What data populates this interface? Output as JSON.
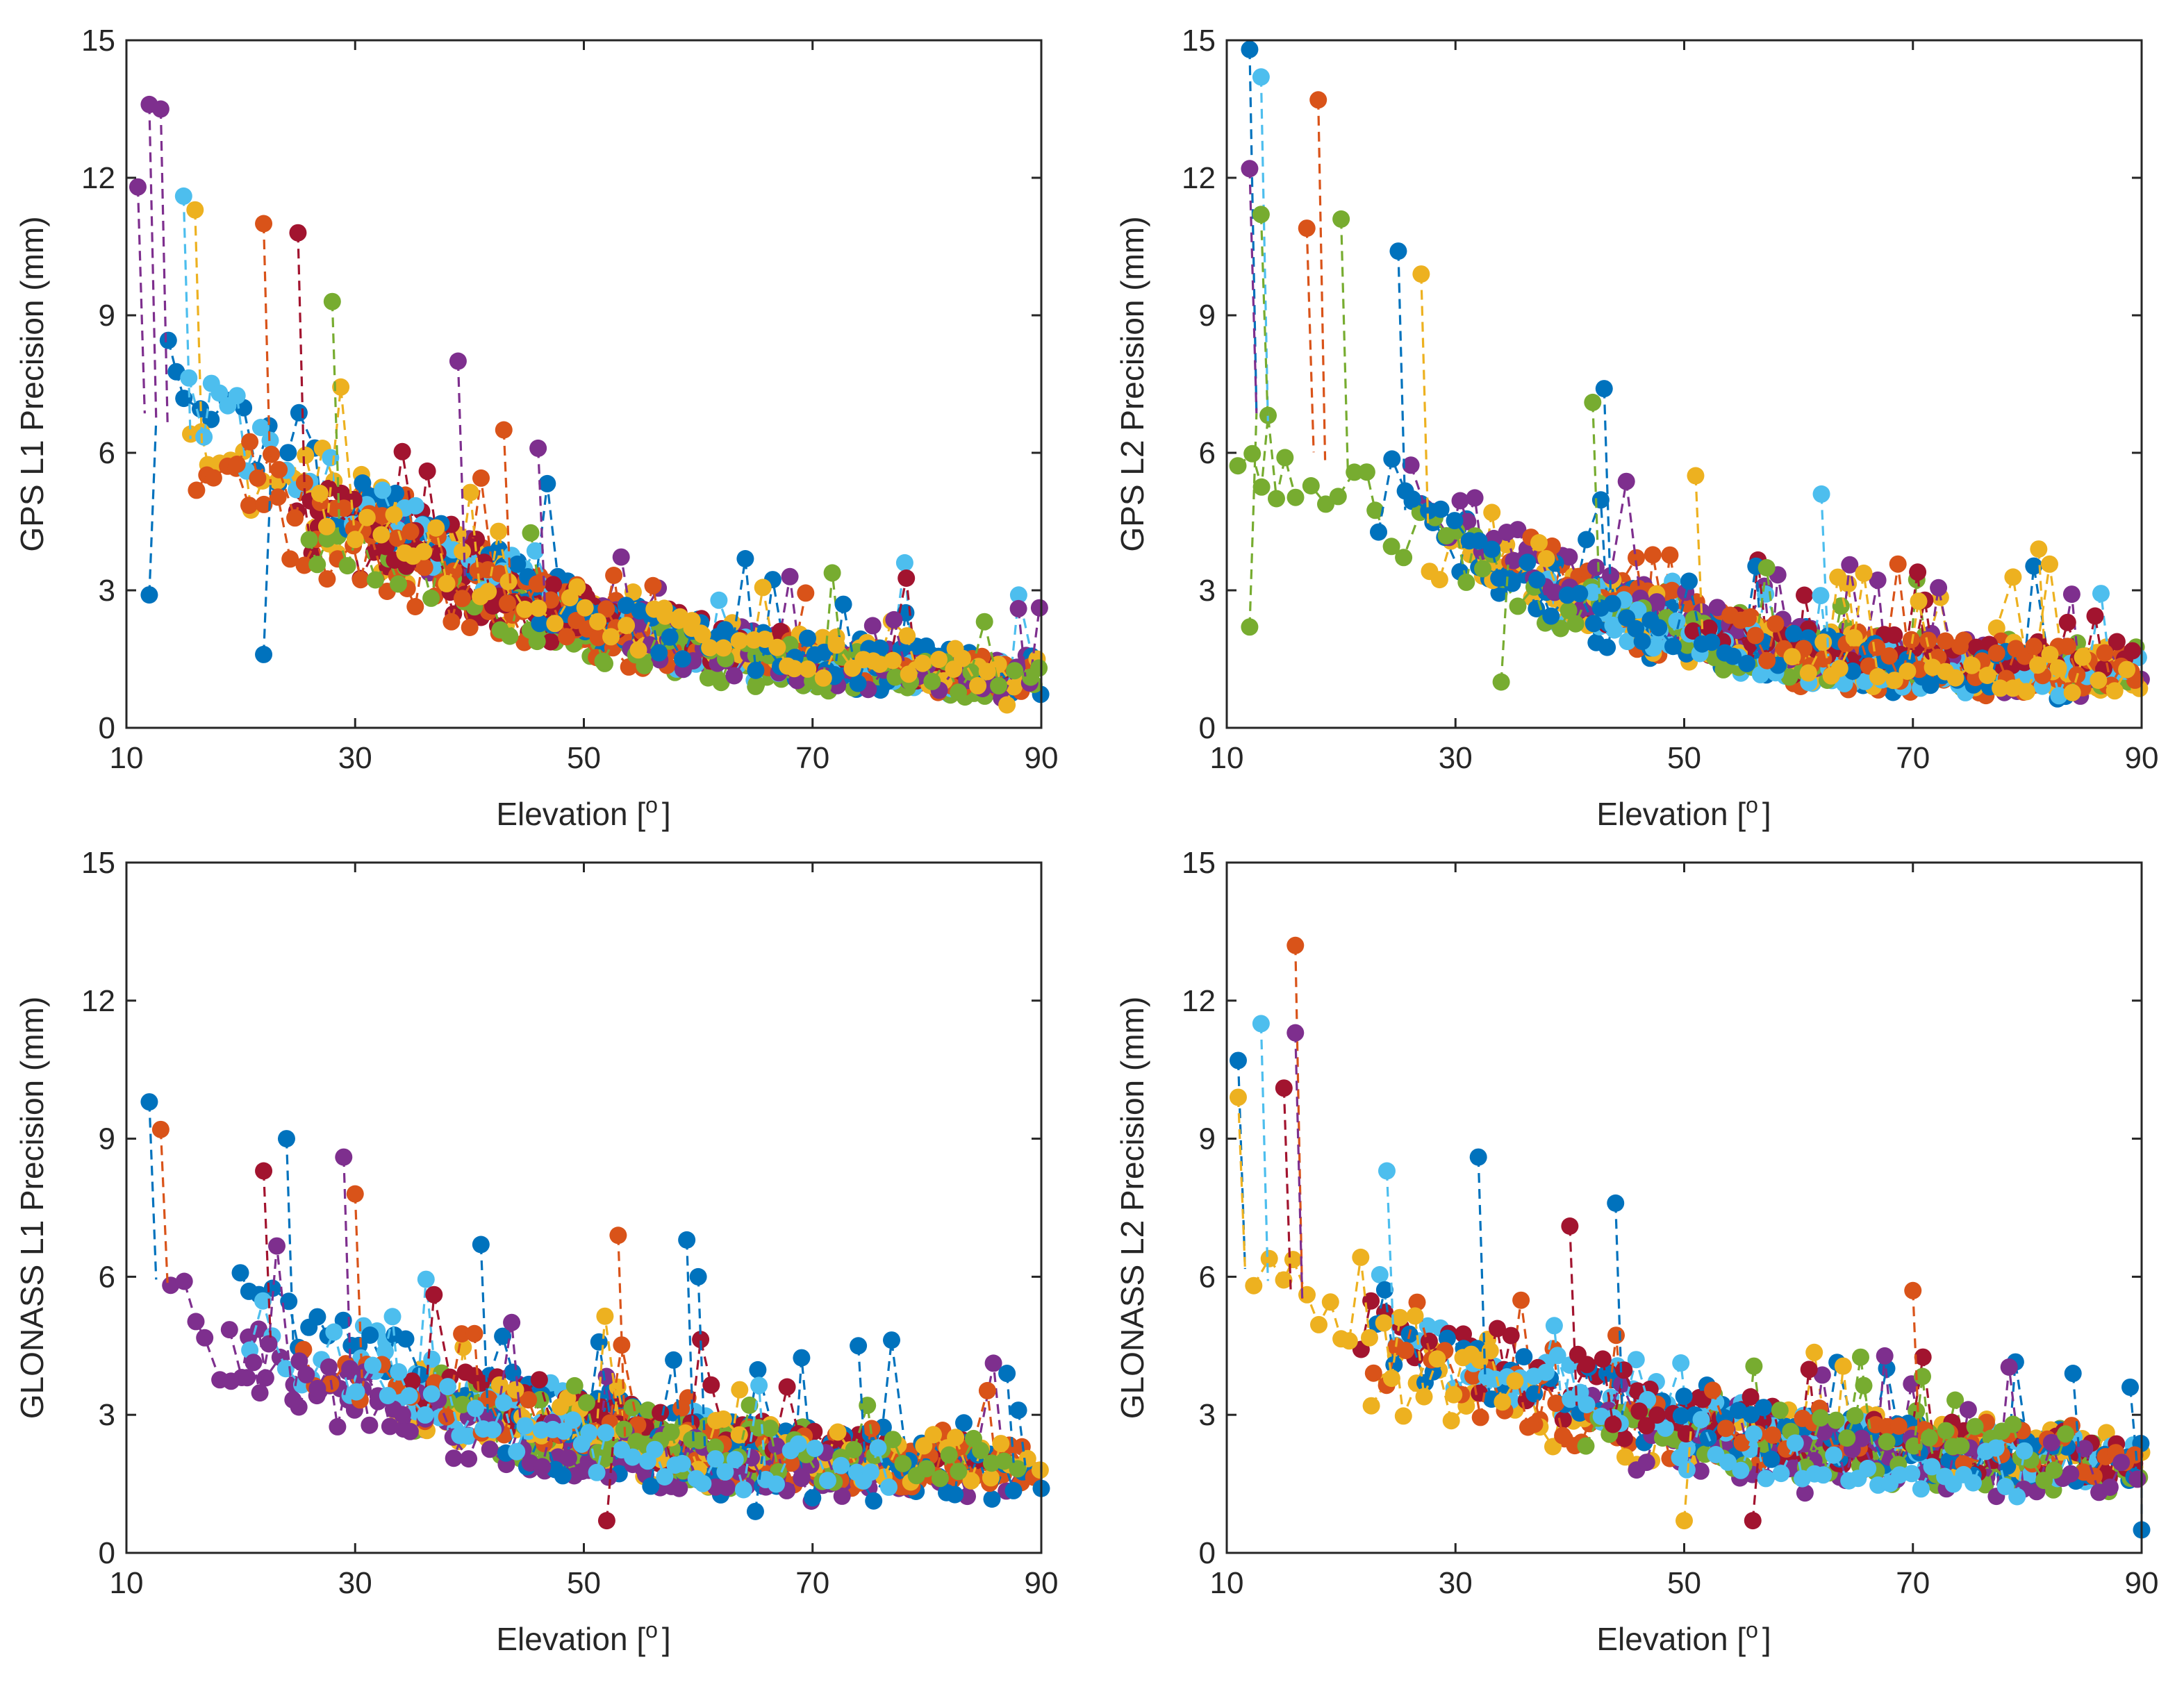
{
  "colors": [
    "#0072BD",
    "#D95319",
    "#EDB120",
    "#7E2F8E",
    "#77AC30",
    "#4DBEEE",
    "#A2142F"
  ],
  "chart_data": [
    {
      "type": "line",
      "ylabel": "GPS L1 Precision (mm)",
      "xlabel": "Elevation [",
      "xlabel_sup": "o",
      "xlabel_close": "]",
      "xlim": [
        10,
        90
      ],
      "ylim": [
        0,
        15
      ],
      "xticks": [
        "10",
        "30",
        "50",
        "70",
        "90"
      ],
      "yticks": [
        "0",
        "3",
        "6",
        "9",
        "12",
        "15"
      ],
      "envelope": {
        "x": [
          10,
          20,
          30,
          40,
          50,
          60,
          70,
          80,
          90
        ],
        "y": [
          7.0,
          5.6,
          4.3,
          3.2,
          2.3,
          1.7,
          1.4,
          1.2,
          1.1
        ]
      },
      "series_count": 24,
      "noise": 0.55,
      "outliers": [
        {
          "x": 12,
          "y": 13.6,
          "c": 3
        },
        {
          "x": 13,
          "y": 13.5,
          "c": 3
        },
        {
          "x": 11,
          "y": 11.8,
          "c": 3
        },
        {
          "x": 15,
          "y": 11.6,
          "c": 5
        },
        {
          "x": 16,
          "y": 11.3,
          "c": 2
        },
        {
          "x": 22,
          "y": 11.0,
          "c": 1
        },
        {
          "x": 25,
          "y": 10.8,
          "c": 6
        },
        {
          "x": 39,
          "y": 8.0,
          "c": 3
        },
        {
          "x": 28,
          "y": 9.3,
          "c": 4
        },
        {
          "x": 43,
          "y": 6.5,
          "c": 1
        },
        {
          "x": 46,
          "y": 6.1,
          "c": 3
        },
        {
          "x": 12,
          "y": 2.9,
          "c": 0
        },
        {
          "x": 22,
          "y": 1.6,
          "c": 0
        },
        {
          "x": 87,
          "y": 0.5,
          "c": 2
        },
        {
          "x": 88,
          "y": 2.6,
          "c": 3
        }
      ]
    },
    {
      "type": "line",
      "ylabel": "GPS L2 Precision (mm)",
      "xlabel": "Elevation [",
      "xlabel_sup": "o",
      "xlabel_close": "]",
      "xlim": [
        10,
        90
      ],
      "ylim": [
        0,
        15
      ],
      "xticks": [
        "10",
        "30",
        "50",
        "70",
        "90"
      ],
      "yticks": [
        "0",
        "3",
        "6",
        "9",
        "12",
        "15"
      ],
      "envelope": {
        "x": [
          10,
          20,
          30,
          40,
          50,
          60,
          70,
          80,
          90
        ],
        "y": [
          7.2,
          5.5,
          4.0,
          2.9,
          2.1,
          1.6,
          1.4,
          1.3,
          1.2
        ]
      },
      "series_count": 24,
      "noise": 0.6,
      "outliers": [
        {
          "x": 12,
          "y": 14.8,
          "c": 0
        },
        {
          "x": 13,
          "y": 14.2,
          "c": 5
        },
        {
          "x": 18,
          "y": 13.7,
          "c": 1
        },
        {
          "x": 12,
          "y": 12.2,
          "c": 3
        },
        {
          "x": 13,
          "y": 11.2,
          "c": 4
        },
        {
          "x": 20,
          "y": 11.1,
          "c": 4
        },
        {
          "x": 17,
          "y": 10.9,
          "c": 1
        },
        {
          "x": 25,
          "y": 10.4,
          "c": 0
        },
        {
          "x": 27,
          "y": 9.9,
          "c": 2
        },
        {
          "x": 43,
          "y": 7.4,
          "c": 0
        },
        {
          "x": 42,
          "y": 7.1,
          "c": 4
        },
        {
          "x": 51,
          "y": 5.5,
          "c": 2
        },
        {
          "x": 62,
          "y": 5.1,
          "c": 5
        },
        {
          "x": 81,
          "y": 3.9,
          "c": 2
        },
        {
          "x": 12,
          "y": 2.2,
          "c": 4
        },
        {
          "x": 34,
          "y": 1.0,
          "c": 4
        }
      ]
    },
    {
      "type": "line",
      "ylabel": "GLONASS L1 Precision (mm)",
      "xlabel": "Elevation [",
      "xlabel_sup": "o",
      "xlabel_close": "]",
      "xlim": [
        10,
        90
      ],
      "ylim": [
        0,
        15
      ],
      "xticks": [
        "10",
        "30",
        "50",
        "70",
        "90"
      ],
      "yticks": [
        "0",
        "3",
        "6",
        "9",
        "12",
        "15"
      ],
      "envelope": {
        "x": [
          10,
          20,
          30,
          40,
          50,
          60,
          70,
          80,
          90
        ],
        "y": [
          6.2,
          4.9,
          3.8,
          3.1,
          2.6,
          2.2,
          2.0,
          1.9,
          1.9
        ]
      },
      "series_count": 20,
      "noise": 0.6,
      "outliers": [
        {
          "x": 12,
          "y": 9.8,
          "c": 0
        },
        {
          "x": 13,
          "y": 9.2,
          "c": 1
        },
        {
          "x": 24,
          "y": 9.0,
          "c": 0
        },
        {
          "x": 29,
          "y": 8.6,
          "c": 3
        },
        {
          "x": 22,
          "y": 8.3,
          "c": 6
        },
        {
          "x": 30,
          "y": 7.8,
          "c": 1
        },
        {
          "x": 53,
          "y": 6.9,
          "c": 1
        },
        {
          "x": 59,
          "y": 6.8,
          "c": 0
        },
        {
          "x": 60,
          "y": 6.0,
          "c": 0
        },
        {
          "x": 41,
          "y": 6.7,
          "c": 0
        },
        {
          "x": 74,
          "y": 4.5,
          "c": 0
        },
        {
          "x": 87,
          "y": 3.9,
          "c": 0
        },
        {
          "x": 88,
          "y": 3.1,
          "c": 0
        },
        {
          "x": 90,
          "y": 1.4,
          "c": 0
        },
        {
          "x": 52,
          "y": 0.7,
          "c": 6
        },
        {
          "x": 65,
          "y": 0.9,
          "c": 0
        }
      ]
    },
    {
      "type": "line",
      "ylabel": "GLONASS L2 Precision (mm)",
      "xlabel": "Elevation [",
      "xlabel_sup": "o",
      "xlabel_close": "]",
      "xlim": [
        10,
        90
      ],
      "ylim": [
        0,
        15
      ],
      "xticks": [
        "10",
        "30",
        "50",
        "70",
        "90"
      ],
      "yticks": [
        "0",
        "3",
        "6",
        "9",
        "12",
        "15"
      ],
      "envelope": {
        "x": [
          10,
          20,
          30,
          40,
          50,
          60,
          70,
          80,
          90
        ],
        "y": [
          6.3,
          5.0,
          3.9,
          3.2,
          2.7,
          2.3,
          2.1,
          2.0,
          1.9
        ]
      },
      "series_count": 20,
      "noise": 0.65,
      "outliers": [
        {
          "x": 16,
          "y": 13.2,
          "c": 1
        },
        {
          "x": 13,
          "y": 11.5,
          "c": 5
        },
        {
          "x": 16,
          "y": 11.3,
          "c": 3
        },
        {
          "x": 11,
          "y": 10.7,
          "c": 0
        },
        {
          "x": 15,
          "y": 10.1,
          "c": 6
        },
        {
          "x": 11,
          "y": 9.9,
          "c": 2
        },
        {
          "x": 32,
          "y": 8.6,
          "c": 0
        },
        {
          "x": 24,
          "y": 8.3,
          "c": 5
        },
        {
          "x": 44,
          "y": 7.6,
          "c": 0
        },
        {
          "x": 40,
          "y": 7.1,
          "c": 6
        },
        {
          "x": 70,
          "y": 5.7,
          "c": 1
        },
        {
          "x": 84,
          "y": 3.9,
          "c": 0
        },
        {
          "x": 89,
          "y": 3.6,
          "c": 0
        },
        {
          "x": 90,
          "y": 0.5,
          "c": 0
        },
        {
          "x": 50,
          "y": 0.7,
          "c": 2
        },
        {
          "x": 56,
          "y": 0.7,
          "c": 6
        }
      ]
    }
  ]
}
